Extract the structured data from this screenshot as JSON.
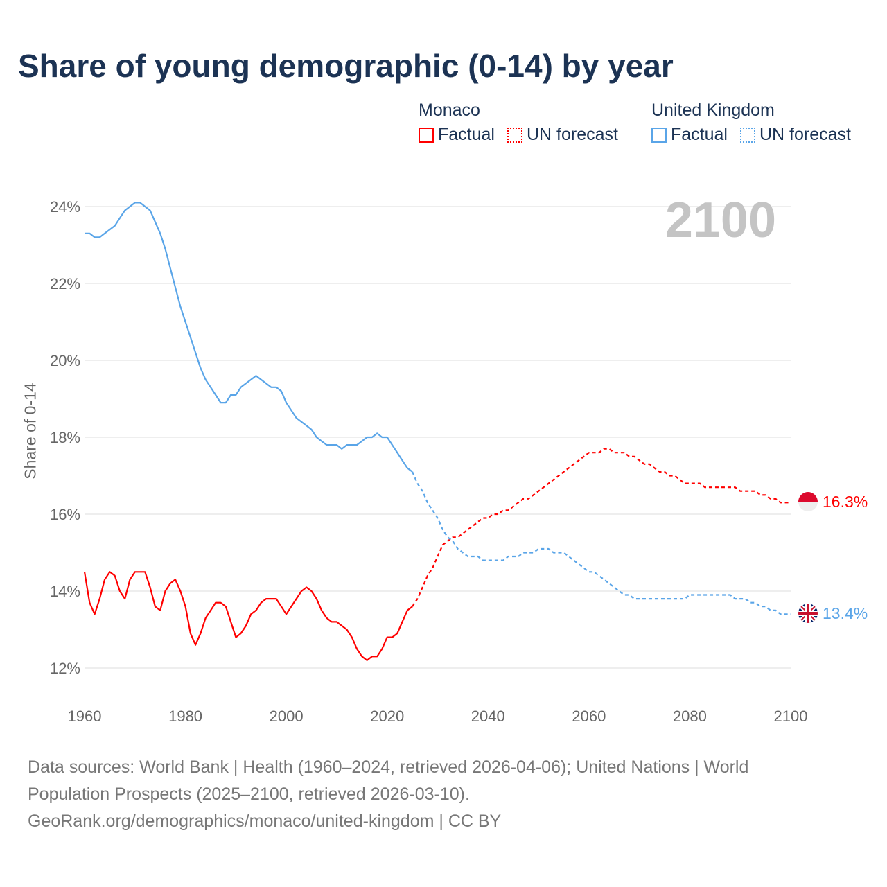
{
  "chart_data": {
    "type": "line",
    "title": "Share of young demographic (0-14) by year",
    "ylabel": "Share of 0-14",
    "xlabel": "",
    "xlim": [
      1960,
      2100
    ],
    "ylim": [
      11.7,
      24.3
    ],
    "x_ticks": [
      "1960",
      "1980",
      "2000",
      "2020",
      "2040",
      "2060",
      "2080",
      "2100"
    ],
    "y_ticks": [
      "12%",
      "14%",
      "16%",
      "18%",
      "20%",
      "22%",
      "24%"
    ],
    "grid": true,
    "legend_placement": "top-right",
    "year_overlay": "2100",
    "series": [
      {
        "name": "Monaco",
        "kind": "Factual",
        "color": "#ff0000",
        "start": 1960,
        "values": [
          14.5,
          13.7,
          13.4,
          13.8,
          14.3,
          14.5,
          14.4,
          14.0,
          13.8,
          14.3,
          14.5,
          14.5,
          14.5,
          14.1,
          13.6,
          13.5,
          14.0,
          14.2,
          14.3,
          14.0,
          13.6,
          12.9,
          12.6,
          12.9,
          13.3,
          13.5,
          13.7,
          13.7,
          13.6,
          13.2,
          12.8,
          12.9,
          13.1,
          13.4,
          13.5,
          13.7,
          13.8,
          13.8,
          13.8,
          13.6,
          13.4,
          13.6,
          13.8,
          14.0,
          14.1,
          14.0,
          13.8,
          13.5,
          13.3,
          13.2,
          13.2,
          13.1,
          13.0,
          12.8,
          12.5,
          12.3,
          12.2,
          12.3,
          12.3,
          12.5,
          12.8,
          12.8,
          12.9,
          13.2,
          13.5,
          13.6
        ]
      },
      {
        "name": "Monaco",
        "kind": "UN forecast",
        "color": "#ff0000",
        "start": 2025,
        "values": [
          13.6,
          13.8,
          14.1,
          14.4,
          14.6,
          14.9,
          15.2,
          15.3,
          15.4,
          15.4,
          15.5,
          15.6,
          15.7,
          15.8,
          15.9,
          15.9,
          16.0,
          16.0,
          16.1,
          16.1,
          16.2,
          16.3,
          16.4,
          16.4,
          16.5,
          16.6,
          16.7,
          16.8,
          16.9,
          17.0,
          17.1,
          17.2,
          17.3,
          17.4,
          17.5,
          17.6,
          17.6,
          17.6,
          17.7,
          17.7,
          17.6,
          17.6,
          17.6,
          17.5,
          17.5,
          17.4,
          17.3,
          17.3,
          17.2,
          17.1,
          17.1,
          17.0,
          17.0,
          16.9,
          16.8,
          16.8,
          16.8,
          16.8,
          16.7,
          16.7,
          16.7,
          16.7,
          16.7,
          16.7,
          16.7,
          16.6,
          16.6,
          16.6,
          16.6,
          16.5,
          16.5,
          16.4,
          16.4,
          16.3,
          16.3,
          16.3
        ]
      },
      {
        "name": "United Kingdom",
        "kind": "Factual",
        "color": "#5aa5e8",
        "start": 1960,
        "values": [
          23.3,
          23.3,
          23.2,
          23.2,
          23.3,
          23.4,
          23.5,
          23.7,
          23.9,
          24.0,
          24.1,
          24.1,
          24.0,
          23.9,
          23.6,
          23.3,
          22.9,
          22.4,
          21.9,
          21.4,
          21.0,
          20.6,
          20.2,
          19.8,
          19.5,
          19.3,
          19.1,
          18.9,
          18.9,
          19.1,
          19.1,
          19.3,
          19.4,
          19.5,
          19.6,
          19.5,
          19.4,
          19.3,
          19.3,
          19.2,
          18.9,
          18.7,
          18.5,
          18.4,
          18.3,
          18.2,
          18.0,
          17.9,
          17.8,
          17.8,
          17.8,
          17.7,
          17.8,
          17.8,
          17.8,
          17.9,
          18.0,
          18.0,
          18.1,
          18.0,
          18.0,
          17.8,
          17.6,
          17.4,
          17.2,
          17.1
        ]
      },
      {
        "name": "United Kingdom",
        "kind": "UN forecast",
        "color": "#5aa5e8",
        "start": 2025,
        "values": [
          17.1,
          16.8,
          16.6,
          16.3,
          16.1,
          15.9,
          15.6,
          15.4,
          15.3,
          15.1,
          15.0,
          14.9,
          14.9,
          14.9,
          14.8,
          14.8,
          14.8,
          14.8,
          14.8,
          14.9,
          14.9,
          14.9,
          15.0,
          15.0,
          15.0,
          15.1,
          15.1,
          15.1,
          15.0,
          15.0,
          15.0,
          14.9,
          14.8,
          14.7,
          14.6,
          14.5,
          14.5,
          14.4,
          14.3,
          14.2,
          14.1,
          14.0,
          13.9,
          13.9,
          13.8,
          13.8,
          13.8,
          13.8,
          13.8,
          13.8,
          13.8,
          13.8,
          13.8,
          13.8,
          13.8,
          13.9,
          13.9,
          13.9,
          13.9,
          13.9,
          13.9,
          13.9,
          13.9,
          13.9,
          13.8,
          13.8,
          13.8,
          13.7,
          13.7,
          13.6,
          13.6,
          13.5,
          13.5,
          13.4,
          13.4,
          13.4
        ]
      }
    ],
    "end_labels": {
      "monaco": "16.3%",
      "uk": "13.4%"
    }
  },
  "legend": {
    "monaco": "Monaco",
    "uk": "United Kingdom",
    "factual": "Factual",
    "forecast": "UN forecast"
  },
  "source": {
    "line1": "Data sources: World Bank | Health (1960–2024, retrieved 2026-04-06); United Nations | World Population Prospects (2025–2100, retrieved 2026-03-10).",
    "line2": "GeoRank.org/demographics/monaco/united-kingdom | CC BY"
  }
}
